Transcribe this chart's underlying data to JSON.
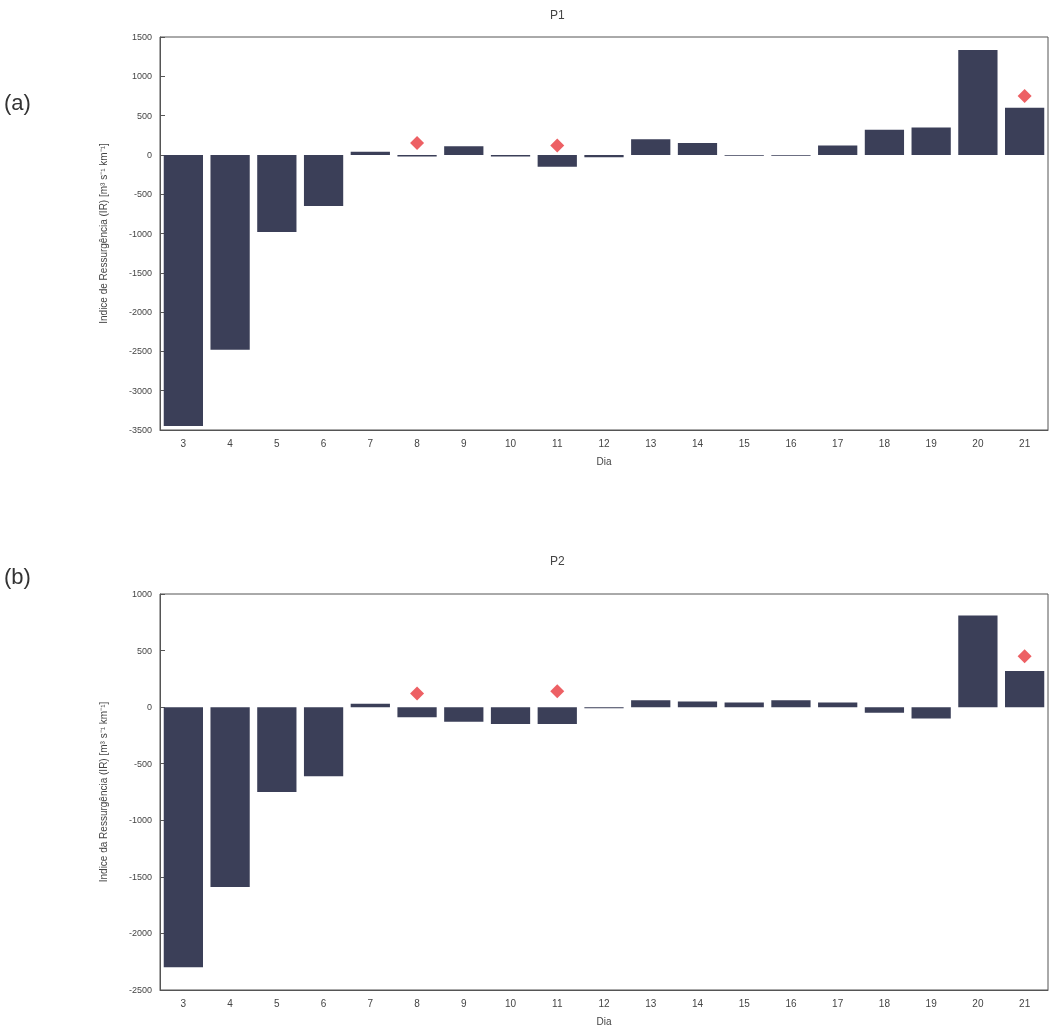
{
  "chart_data": [
    {
      "type": "bar",
      "title": "P1",
      "xlabel": "Dia",
      "ylabel": "Indice de Ressurgência (IR) [m³ s⁻¹ km⁻¹]",
      "annotations": [
        "(a)"
      ],
      "categories": [
        "3",
        "4",
        "5",
        "6",
        "7",
        "8",
        "9",
        "10",
        "11",
        "12",
        "13",
        "14",
        "15",
        "16",
        "17",
        "18",
        "19",
        "20",
        "21"
      ],
      "ylim": [
        -3500,
        1500
      ],
      "yticks": [
        -3500,
        -3000,
        -2500,
        -2000,
        -1500,
        -1000,
        -500,
        0,
        500,
        1000,
        1500
      ],
      "grid": false,
      "marker": "diamond",
      "series": [
        {
          "type": "bar",
          "color": "#3b3f58",
          "values": [
            -3450,
            -2480,
            -980,
            -650,
            40,
            -20,
            110,
            -20,
            -150,
            -30,
            200,
            150,
            -10,
            -10,
            120,
            320,
            350,
            1335,
            600
          ]
        },
        {
          "type": "scatter",
          "color": "#e8383d",
          "x": [
            "8",
            "11",
            "21"
          ],
          "values": [
            150,
            120,
            750
          ]
        }
      ]
    },
    {
      "type": "bar",
      "title": "P2",
      "xlabel": "Dia",
      "ylabel": "Indice da Ressurgência (IR) [m³ s⁻¹ km⁻¹]",
      "annotations": [
        "(b)"
      ],
      "categories": [
        "3",
        "4",
        "5",
        "6",
        "7",
        "8",
        "9",
        "10",
        "11",
        "12",
        "13",
        "14",
        "15",
        "16",
        "17",
        "18",
        "19",
        "20",
        "21"
      ],
      "ylim": [
        -2500,
        1000
      ],
      "yticks": [
        -2500,
        -2000,
        -1500,
        -1000,
        -500,
        0,
        500,
        1000
      ],
      "grid": false,
      "marker": "diamond",
      "series": [
        {
          "type": "bar",
          "color": "#3b3f58",
          "values": [
            -2300,
            -1590,
            -750,
            -610,
            30,
            -90,
            -130,
            -150,
            -150,
            -10,
            60,
            50,
            40,
            60,
            40,
            -50,
            -100,
            810,
            320
          ]
        },
        {
          "type": "scatter",
          "color": "#e8383d",
          "x": [
            "8",
            "11",
            "21"
          ],
          "values": [
            120,
            140,
            450
          ]
        }
      ]
    }
  ]
}
